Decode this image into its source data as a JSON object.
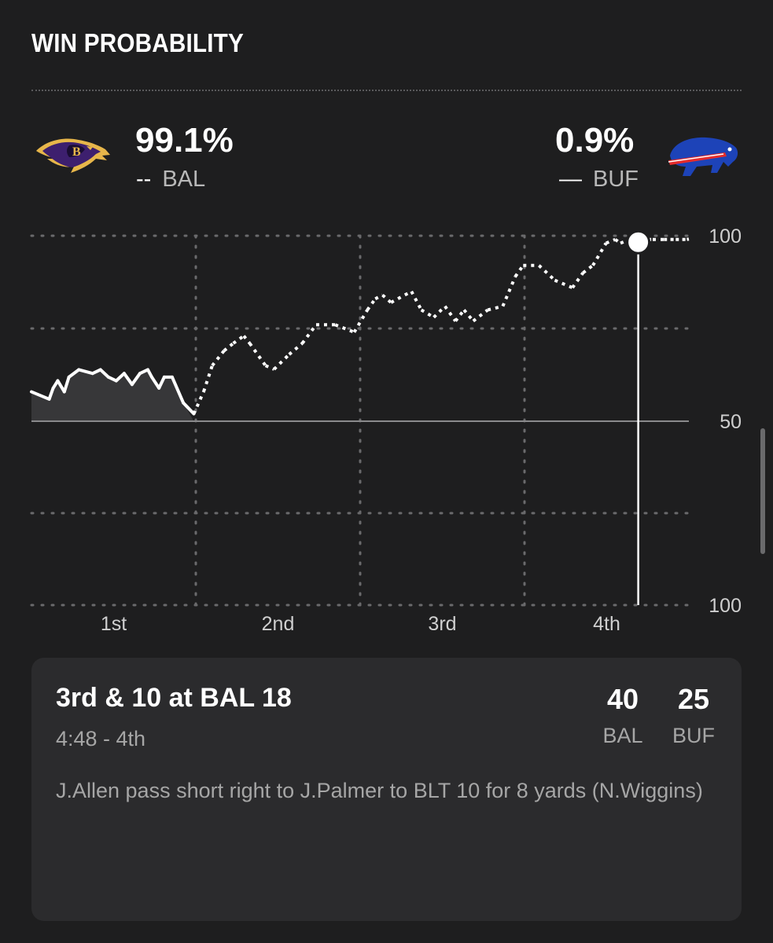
{
  "header": {
    "title": "WIN PROBABILITY"
  },
  "teams": {
    "away": {
      "pct": "99.1%",
      "abbr": "BAL",
      "legend_symbol": "--",
      "logo_icon": "ravens-logo-icon"
    },
    "home": {
      "pct": "0.9%",
      "abbr": "BUF",
      "legend_symbol": "—",
      "logo_icon": "bills-logo-icon"
    }
  },
  "colors": {
    "background": "#1e1e1f",
    "card": "#2b2b2d",
    "line": "#ffffff",
    "grid": "#6a6a6c",
    "shade": "#3a3a3c"
  },
  "chart_data": {
    "type": "line",
    "ylim": [
      0,
      100
    ],
    "y_tick_labels": [
      "100",
      "50",
      "100"
    ],
    "x_tick_labels": [
      "1st",
      "2nd",
      "3rd",
      "4th"
    ],
    "x_unit": "game progress (0 = kickoff, 1 = end of regulation)",
    "series": [
      {
        "name": "BAL",
        "style": "dashed",
        "x": [
          0.0,
          0.027,
          0.033,
          0.04,
          0.05,
          0.057,
          0.072,
          0.093,
          0.105,
          0.117,
          0.129,
          0.141,
          0.153,
          0.165,
          0.177,
          0.183,
          0.194,
          0.202,
          0.214,
          0.231,
          0.247,
          0.262,
          0.275,
          0.293,
          0.307,
          0.323,
          0.332,
          0.356,
          0.369,
          0.392,
          0.412,
          0.433,
          0.462,
          0.491,
          0.511,
          0.523,
          0.534,
          0.547,
          0.578,
          0.593,
          0.612,
          0.629,
          0.645,
          0.658,
          0.672,
          0.694,
          0.717,
          0.736,
          0.748,
          0.772,
          0.796,
          0.823,
          0.839,
          0.854,
          0.874,
          0.888,
          0.896,
          0.91,
          0.926,
          0.945,
          0.962,
          0.972,
          0.98,
          0.99,
          0.997,
          1.0
        ],
        "y": [
          42,
          44,
          41,
          39,
          42,
          38,
          36,
          37,
          36,
          38,
          39,
          37,
          40,
          37,
          36,
          38,
          41,
          38,
          38,
          45,
          52,
          58,
          65,
          69,
          71,
          73,
          71,
          65,
          64,
          68,
          71,
          76,
          76,
          74,
          80,
          83,
          84,
          82,
          85,
          80,
          78,
          81,
          77,
          80,
          77,
          80,
          81,
          89,
          92,
          92,
          88,
          86,
          90,
          92,
          98,
          99,
          98,
          99,
          99,
          99,
          99,
          99,
          99,
          99,
          99,
          99.1
        ]
      },
      {
        "name": "BUF",
        "style": "solid",
        "x": [
          0.0,
          0.027,
          0.033,
          0.04,
          0.05,
          0.057,
          0.072,
          0.093,
          0.105,
          0.117,
          0.129,
          0.141,
          0.153,
          0.165,
          0.177,
          0.183,
          0.194,
          0.202,
          0.214,
          0.231,
          0.247,
          0.262,
          0.275,
          0.293,
          0.307,
          0.323,
          0.332,
          0.356,
          0.369,
          0.392,
          0.412,
          0.433,
          0.462,
          0.491,
          0.511,
          0.523,
          0.534,
          0.547,
          0.578,
          0.593,
          0.612,
          0.629,
          0.645,
          0.658,
          0.672,
          0.694,
          0.717,
          0.736,
          0.748,
          0.772,
          0.796,
          0.823,
          0.839,
          0.854,
          0.874,
          0.888,
          0.896,
          0.91,
          0.926,
          0.945,
          0.962,
          0.972,
          0.98,
          0.99,
          0.997,
          1.0
        ],
        "y": [
          58,
          56,
          59,
          61,
          58,
          62,
          64,
          63,
          64,
          62,
          61,
          63,
          60,
          63,
          64,
          62,
          59,
          62,
          62,
          55,
          48,
          42,
          35,
          31,
          29,
          27,
          29,
          35,
          36,
          32,
          29,
          24,
          24,
          26,
          20,
          17,
          16,
          18,
          15,
          20,
          22,
          19,
          23,
          20,
          23,
          20,
          19,
          11,
          8,
          8,
          12,
          14,
          10,
          8,
          2,
          1,
          2,
          1,
          1,
          1,
          1,
          1,
          1,
          1,
          1,
          0.9
        ]
      }
    ],
    "current_marker": {
      "x": 0.923,
      "series": "BAL",
      "y": 99.1
    }
  },
  "play": {
    "situation": "3rd & 10 at BAL 18",
    "clock": "4:48 - 4th",
    "description": "J.Allen pass short right to J.Palmer to BLT 10 for 8 yards (N.Wiggins)",
    "score": [
      {
        "value": "40",
        "team": "BAL"
      },
      {
        "value": "25",
        "team": "BUF"
      }
    ]
  }
}
